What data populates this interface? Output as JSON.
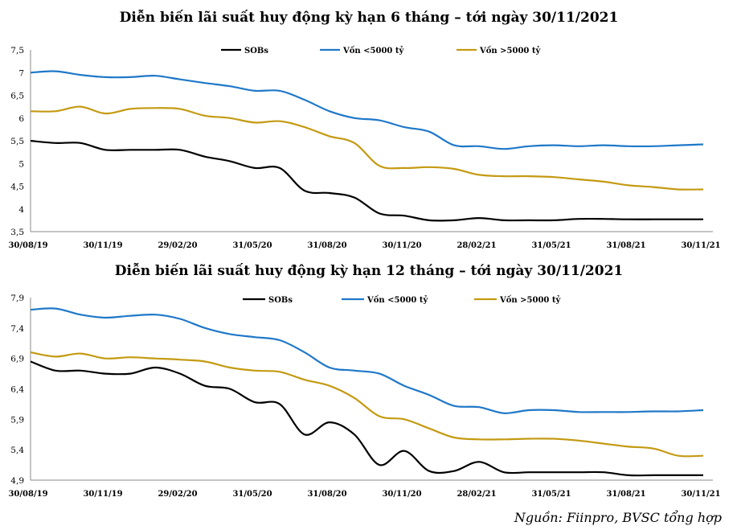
{
  "source": "Nguồn: Fiinpro, BVSC tổng hợp",
  "chart_data": [
    {
      "type": "line",
      "title": "Diễn biến lãi suất huy động kỳ hạn 6 tháng – tới ngày 30/11/2021",
      "x_tick_labels": [
        "30/08/19",
        "30/11/19",
        "29/02/20",
        "31/05/20",
        "31/08/20",
        "30/11/20",
        "28/02/21",
        "31/05/21",
        "31/08/21",
        "30/11/21"
      ],
      "y_ticks": [
        "3,5",
        "4",
        "4,5",
        "5",
        "5,5",
        "6",
        "6,5",
        "7",
        "7,5"
      ],
      "ylim": [
        3.5,
        7.5
      ],
      "grid": false,
      "legend_position": "top",
      "series": [
        {
          "name": "SOBs",
          "color": "#000000",
          "values": [
            5.5,
            5.45,
            5.45,
            5.3,
            5.3,
            5.3,
            5.3,
            5.15,
            5.05,
            4.9,
            4.9,
            4.4,
            4.35,
            4.25,
            3.9,
            3.85,
            3.75,
            3.75,
            3.8,
            3.75,
            3.75,
            3.75,
            3.78,
            3.78,
            3.77,
            3.77,
            3.77,
            3.77
          ]
        },
        {
          "name": "Vốn <5000 tỷ",
          "color": "#1f78c8",
          "values": [
            7.0,
            7.03,
            6.95,
            6.9,
            6.9,
            6.93,
            6.85,
            6.77,
            6.7,
            6.6,
            6.6,
            6.4,
            6.15,
            6.0,
            5.95,
            5.8,
            5.7,
            5.4,
            5.38,
            5.32,
            5.38,
            5.4,
            5.38,
            5.4,
            5.38,
            5.38,
            5.4,
            5.42
          ]
        },
        {
          "name": "Vốn >5000 tỷ",
          "color": "#c49a12",
          "values": [
            6.15,
            6.15,
            6.25,
            6.1,
            6.2,
            6.22,
            6.2,
            6.05,
            6.0,
            5.9,
            5.93,
            5.8,
            5.6,
            5.45,
            4.95,
            4.9,
            4.92,
            4.88,
            4.75,
            4.72,
            4.72,
            4.7,
            4.65,
            4.6,
            4.52,
            4.48,
            4.43,
            4.43
          ]
        }
      ]
    },
    {
      "type": "line",
      "title": "Diễn biến lãi suất huy động kỳ hạn 12 tháng – tới ngày 30/11/2021",
      "x_tick_labels": [
        "30/08/19",
        "30/11/19",
        "29/02/20",
        "31/05/20",
        "31/08/20",
        "30/11/20",
        "28/02/21",
        "31/05/21",
        "31/08/21",
        "30/11/21"
      ],
      "y_ticks": [
        "4,9",
        "5,4",
        "5,9",
        "6,4",
        "6,9",
        "7,4",
        "7,9"
      ],
      "ylim": [
        4.9,
        7.9
      ],
      "grid": false,
      "legend_position": "top",
      "series": [
        {
          "name": "SOBs",
          "color": "#000000",
          "values": [
            6.85,
            6.7,
            6.7,
            6.65,
            6.65,
            6.75,
            6.65,
            6.45,
            6.4,
            6.18,
            6.15,
            5.65,
            5.85,
            5.65,
            5.15,
            5.38,
            5.05,
            5.05,
            5.2,
            5.03,
            5.03,
            5.03,
            5.03,
            5.03,
            4.98,
            4.98,
            4.98,
            4.98
          ]
        },
        {
          "name": "Vốn <5000 tỷ",
          "color": "#1f78c8",
          "values": [
            7.7,
            7.72,
            7.62,
            7.57,
            7.6,
            7.62,
            7.55,
            7.4,
            7.3,
            7.25,
            7.2,
            7.0,
            6.75,
            6.7,
            6.65,
            6.45,
            6.3,
            6.12,
            6.1,
            6.0,
            6.05,
            6.05,
            6.02,
            6.02,
            6.02,
            6.03,
            6.03,
            6.05
          ]
        },
        {
          "name": "Vốn >5000 tỷ",
          "color": "#c49a12",
          "values": [
            7.0,
            6.93,
            6.98,
            6.9,
            6.92,
            6.9,
            6.88,
            6.85,
            6.75,
            6.7,
            6.68,
            6.55,
            6.45,
            6.25,
            5.95,
            5.9,
            5.75,
            5.6,
            5.57,
            5.57,
            5.58,
            5.58,
            5.55,
            5.5,
            5.45,
            5.42,
            5.3,
            5.3
          ]
        }
      ]
    }
  ]
}
